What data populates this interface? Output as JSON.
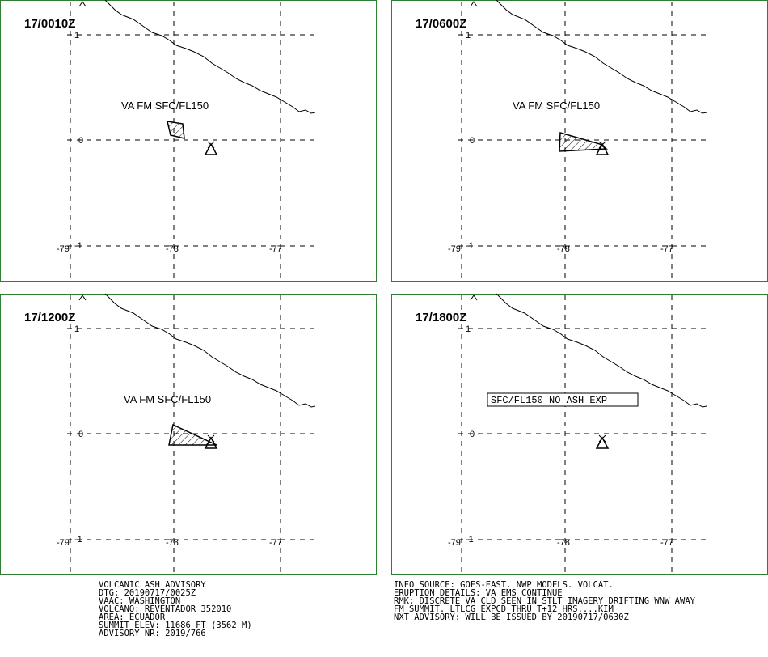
{
  "panels": [
    {
      "time": "17/0010Z",
      "annotation": "VA FM SFC/FL150",
      "lat_labels": [
        "1",
        "0",
        "-1"
      ],
      "lon_labels": [
        "-79",
        "-78",
        "-77"
      ]
    },
    {
      "time": "17/0600Z",
      "annotation": "VA FM SFC/FL150",
      "lat_labels": [
        "1",
        "0",
        "-1"
      ],
      "lon_labels": [
        "-79",
        "-78",
        "-77"
      ]
    },
    {
      "time": "17/1200Z",
      "annotation": "VA FM SFC/FL150",
      "lat_labels": [
        "1",
        "0",
        "-1"
      ],
      "lon_labels": [
        "-79",
        "-78",
        "-77"
      ]
    },
    {
      "time": "17/1800Z",
      "annotation": "SFC/FL150 NO ASH EXP",
      "lat_labels": [
        "1",
        "0",
        "-1"
      ],
      "lon_labels": [
        "-79",
        "-78",
        "-77"
      ]
    }
  ],
  "advisory_left": [
    "VOLCANIC ASH ADVISORY",
    "DTG: 20190717/0025Z",
    "VAAC: WASHINGTON",
    "VOLCANO: REVENTADOR 352010",
    "AREA: ECUADOR",
    "SUMMIT ELEV: 11686 FT (3562 M)",
    "ADVISORY NR: 2019/766"
  ],
  "advisory_right": [
    "INFO SOURCE: GOES-EAST. NWP MODELS. VOLCAT.",
    "ERUPTION DETAILS: VA EMS CONTINUE",
    "RMK: DISCRETE VA CLD SEEN IN STLT IMAGERY DRIFTING WNW AWAY",
    "FM SUMMIT. LTLCG EXPCD THRU T+12 HRS....KIM",
    "NXT ADVISORY: WILL BE ISSUED BY 20190717/0630Z"
  ]
}
